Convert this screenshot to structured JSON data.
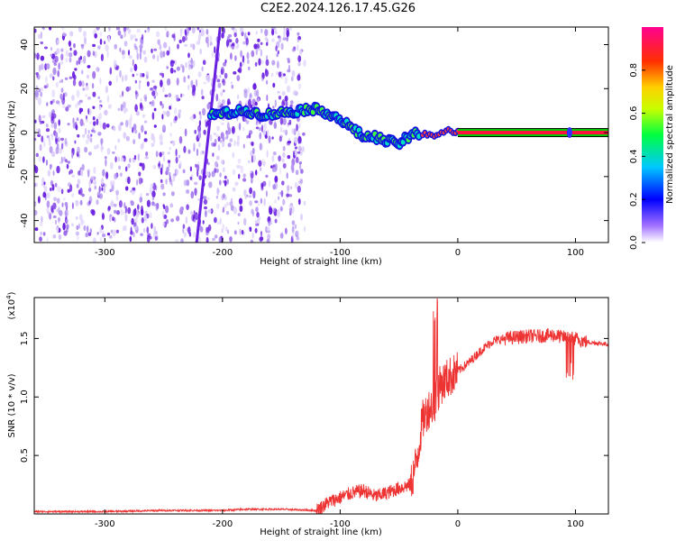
{
  "title": "C2E2.2024.126.17.45.G26",
  "chart_data": [
    {
      "type": "heatmap",
      "xlabel": "Height of straight line (km)",
      "ylabel": "Frequency (Hz)",
      "xlim": [
        -360,
        128
      ],
      "ylim": [
        -50,
        48
      ],
      "xticks": [
        -300,
        -200,
        -100,
        0,
        100
      ],
      "yticks": [
        -40,
        -20,
        0,
        20,
        40
      ],
      "grid": false,
      "colorbar": {
        "label": "Normalized spectral amplitude",
        "range": [
          0,
          1
        ],
        "ticks": [
          0.0,
          0.2,
          0.4,
          0.6,
          0.8
        ],
        "colors": [
          "#ffffff",
          "#8a2be2",
          "#0000ff",
          "#00ffff",
          "#00ff00",
          "#ffff00",
          "#ff7f00",
          "#ff0000",
          "#ff1493"
        ]
      },
      "signal_track": {
        "height_km": [
          -210,
          -195,
          -180,
          -165,
          -150,
          -135,
          -125,
          -110,
          -100,
          -90,
          -80,
          -70,
          -60,
          -50,
          -45,
          -40,
          -35,
          -30,
          -20,
          -10,
          0,
          20,
          60,
          100,
          128
        ],
        "frequency_hz": [
          8,
          9,
          10,
          8,
          9,
          10,
          11,
          9,
          6,
          2,
          -2,
          -2,
          -4,
          -5,
          -3,
          -2,
          0,
          -1,
          -1,
          1,
          0,
          0,
          0,
          0,
          0
        ]
      },
      "noise_extent_km": [
        -360,
        -130
      ],
      "drift_line": {
        "height_km": [
          -222,
          -202
        ],
        "frequency_hz": [
          -50,
          48
        ]
      }
    },
    {
      "type": "line",
      "xlabel": "Height of straight line (km)",
      "ylabel": "SNR (10 * v/v)",
      "y_multiplier": "(x10",
      "y_multiplier_exp": "4",
      "xlim": [
        -360,
        128
      ],
      "ylim": [
        0,
        1.85
      ],
      "xticks": [
        -300,
        -200,
        -100,
        0,
        100
      ],
      "yticks": [
        0.5,
        1.0,
        1.5
      ],
      "ytick_labels": [
        "0.5",
        "1.0",
        "1.5"
      ],
      "grid": false,
      "series_color": "#ee3333",
      "x": [
        -360,
        -300,
        -250,
        -200,
        -180,
        -150,
        -120,
        -110,
        -100,
        -90,
        -80,
        -70,
        -60,
        -50,
        -40,
        -35,
        -30,
        -25,
        -20,
        -15,
        -10,
        0,
        10,
        20,
        30,
        40,
        50,
        60,
        70,
        80,
        90,
        100,
        110,
        128
      ],
      "y": [
        0.02,
        0.02,
        0.03,
        0.03,
        0.04,
        0.04,
        0.03,
        0.1,
        0.14,
        0.18,
        0.2,
        0.15,
        0.18,
        0.22,
        0.25,
        0.45,
        0.8,
        0.9,
        0.95,
        1.1,
        1.15,
        1.22,
        1.3,
        1.4,
        1.48,
        1.5,
        1.51,
        1.52,
        1.52,
        1.53,
        1.51,
        1.5,
        1.47,
        1.45
      ]
    }
  ]
}
